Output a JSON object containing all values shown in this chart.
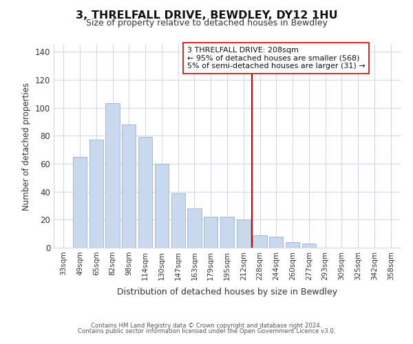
{
  "title": "3, THRELFALL DRIVE, BEWDLEY, DY12 1HU",
  "subtitle": "Size of property relative to detached houses in Bewdley",
  "xlabel": "Distribution of detached houses by size in Bewdley",
  "ylabel": "Number of detached properties",
  "bar_labels": [
    "33sqm",
    "49sqm",
    "65sqm",
    "82sqm",
    "98sqm",
    "114sqm",
    "130sqm",
    "147sqm",
    "163sqm",
    "179sqm",
    "195sqm",
    "212sqm",
    "228sqm",
    "244sqm",
    "260sqm",
    "277sqm",
    "293sqm",
    "309sqm",
    "325sqm",
    "342sqm",
    "358sqm"
  ],
  "bar_values": [
    0,
    65,
    77,
    103,
    88,
    79,
    60,
    39,
    28,
    22,
    22,
    20,
    9,
    8,
    4,
    3,
    0,
    0,
    0,
    0,
    0
  ],
  "bar_color": "#c8d9ee",
  "bar_edge_color": "#a0b8d8",
  "vline_x": 11.5,
  "vline_color": "#cc0000",
  "ylim": [
    0,
    145
  ],
  "yticks": [
    0,
    20,
    40,
    60,
    80,
    100,
    120,
    140
  ],
  "annotation_title": "3 THRELFALL DRIVE: 208sqm",
  "annotation_line1": "← 95% of detached houses are smaller (568)",
  "annotation_line2": "5% of semi-detached houses are larger (31) →",
  "footer_line1": "Contains HM Land Registry data © Crown copyright and database right 2024.",
  "footer_line2": "Contains public sector information licensed under the Open Government Licence v3.0.",
  "background_color": "#ffffff",
  "grid_color": "#d0d8e8"
}
